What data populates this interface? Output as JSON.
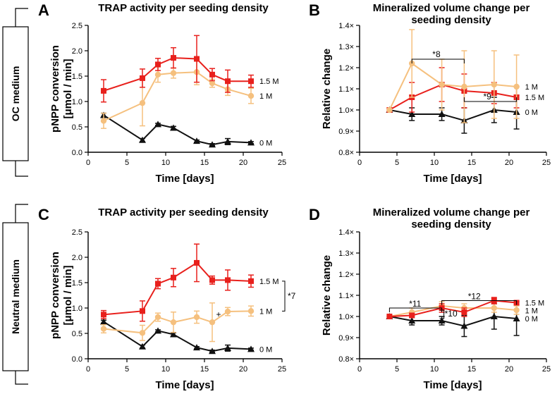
{
  "side_labels": [
    "OC medium",
    "Neutral medium"
  ],
  "chart_data": [
    {
      "panel": "A",
      "type": "line",
      "title": "TRAP activity per seeding density",
      "xlabel": "Time [days]",
      "ylabel": "pNPP conversion [μmol / min]",
      "xlim": [
        0,
        25
      ],
      "ylim": [
        0,
        2.5
      ],
      "xticks": [
        "0",
        "5",
        "10",
        "15",
        "20",
        "25"
      ],
      "yticks": [
        "0.0",
        "0.5",
        "1.0",
        "1.5",
        "2.0",
        "2.5"
      ],
      "series": [
        {
          "name": "1.5 M",
          "color": "#e8201c",
          "marker": "square",
          "x": [
            2,
            7,
            9,
            11,
            14,
            16,
            18,
            21
          ],
          "y": [
            1.21,
            1.46,
            1.73,
            1.86,
            1.84,
            1.53,
            1.4,
            1.4
          ],
          "err": [
            0.22,
            0.18,
            0.12,
            0.2,
            0.46,
            0.12,
            0.22,
            0.12
          ]
        },
        {
          "name": "1 M",
          "color": "#f5c07e",
          "marker": "circle",
          "x": [
            2,
            7,
            9,
            11,
            14,
            16,
            18,
            21
          ],
          "y": [
            0.62,
            0.97,
            1.53,
            1.56,
            1.58,
            1.36,
            1.24,
            1.11
          ],
          "err": [
            0.15,
            0.45,
            0.15,
            0.1,
            0.25,
            0.08,
            0.12,
            0.15
          ]
        },
        {
          "name": "0 M",
          "color": "#111111",
          "marker": "triangle",
          "x": [
            2,
            7,
            9,
            11,
            14,
            16,
            18,
            21
          ],
          "y": [
            0.73,
            0.24,
            0.55,
            0.48,
            0.22,
            0.15,
            0.21,
            0.19
          ],
          "err": [
            0.04,
            0.03,
            0.02,
            0.03,
            0.02,
            0.02,
            0.06,
            0.02
          ]
        }
      ],
      "annotations": []
    },
    {
      "panel": "B",
      "type": "line",
      "title": "Mineralized volume change per seeding density",
      "xlabel": "Time [days]",
      "ylabel": "Relative change",
      "xlim": [
        0,
        25
      ],
      "ylim": [
        0.8,
        1.4
      ],
      "xticks": [
        "0",
        "5",
        "10",
        "15",
        "20",
        "25"
      ],
      "yticks": [
        "0.8×",
        "0.9×",
        "1.0×",
        "1.1×",
        "1.2×",
        "1.3×",
        "1.4×"
      ],
      "series": [
        {
          "name": "1 M",
          "color": "#f5c07e",
          "marker": "circle",
          "x": [
            4,
            7,
            11,
            14,
            18,
            21
          ],
          "y": [
            1.0,
            1.22,
            1.12,
            1.11,
            1.12,
            1.11
          ],
          "err": [
            0,
            0.16,
            0.12,
            0.17,
            0.16,
            0.15
          ]
        },
        {
          "name": "1.5 M",
          "color": "#e8201c",
          "marker": "square",
          "x": [
            4,
            7,
            11,
            14,
            18,
            21
          ],
          "y": [
            1.0,
            1.06,
            1.12,
            1.09,
            1.08,
            1.06
          ],
          "err": [
            0,
            0.07,
            0.08,
            0.08,
            0.05,
            0.05
          ]
        },
        {
          "name": "0 M",
          "color": "#111111",
          "marker": "triangle",
          "x": [
            4,
            7,
            11,
            14,
            18,
            21
          ],
          "y": [
            1.0,
            0.98,
            0.98,
            0.95,
            1.0,
            0.99
          ],
          "err": [
            0,
            0.03,
            0.03,
            0.06,
            0.06,
            0.08
          ]
        }
      ],
      "annotations": [
        "*8",
        "*9"
      ]
    },
    {
      "panel": "C",
      "type": "line",
      "title": "TRAP activity per seeding density",
      "xlabel": "Time [days]",
      "ylabel": "pNPP conversion [μmol / min]",
      "xlim": [
        0,
        25
      ],
      "ylim": [
        0,
        2.5
      ],
      "xticks": [
        "0",
        "5",
        "10",
        "15",
        "20",
        "25"
      ],
      "yticks": [
        "0.0",
        "0.5",
        "1.0",
        "1.5",
        "2.0",
        "2.5"
      ],
      "series": [
        {
          "name": "1.5 M",
          "color": "#e8201c",
          "marker": "square",
          "x": [
            2,
            7,
            9,
            11,
            14,
            16,
            18,
            21
          ],
          "y": [
            0.87,
            0.94,
            1.48,
            1.6,
            1.89,
            1.55,
            1.55,
            1.53
          ],
          "err": [
            0.08,
            0.2,
            0.1,
            0.18,
            0.37,
            0.08,
            0.2,
            0.12
          ]
        },
        {
          "name": "1 M",
          "color": "#f5c07e",
          "marker": "circle",
          "x": [
            2,
            7,
            9,
            11,
            14,
            16,
            18,
            21
          ],
          "y": [
            0.59,
            0.51,
            0.82,
            0.72,
            0.82,
            0.72,
            0.93,
            0.94
          ],
          "err": [
            0.08,
            0.15,
            0.08,
            0.2,
            0.12,
            0.38,
            0.08,
            0.1
          ]
        },
        {
          "name": "0 M",
          "color": "#111111",
          "marker": "triangle",
          "x": [
            2,
            7,
            9,
            11,
            14,
            16,
            18,
            21
          ],
          "y": [
            0.73,
            0.24,
            0.55,
            0.48,
            0.22,
            0.15,
            0.21,
            0.19
          ],
          "err": [
            0.03,
            0.03,
            0.02,
            0.03,
            0.02,
            0.02,
            0.06,
            0.02
          ]
        }
      ],
      "annotations": [
        "*7",
        "+"
      ]
    },
    {
      "panel": "D",
      "type": "line",
      "title": "Mineralized volume change per seeding density",
      "xlabel": "Time [days]",
      "ylabel": "Relative change",
      "xlim": [
        0,
        25
      ],
      "ylim": [
        0.8,
        1.4
      ],
      "xticks": [
        "0",
        "5",
        "10",
        "15",
        "20",
        "25"
      ],
      "yticks": [
        "0.8×",
        "0.9×",
        "1.0×",
        "1.1×",
        "1.2×",
        "1.3×",
        "1.4×"
      ],
      "series": [
        {
          "name": "1.5 M",
          "color": "#e8201c",
          "marker": "square",
          "x": [
            4,
            7,
            11,
            14,
            18,
            21
          ],
          "y": [
            1.0,
            1.005,
            1.04,
            1.02,
            1.075,
            1.065
          ],
          "err": [
            0,
            0.01,
            0.02,
            0.02,
            0.015,
            0.01
          ]
        },
        {
          "name": "1 M",
          "color": "#f5c07e",
          "marker": "circle",
          "x": [
            4,
            7,
            11,
            14,
            18,
            21
          ],
          "y": [
            1.0,
            1.02,
            1.05,
            1.04,
            1.04,
            1.03
          ],
          "err": [
            0,
            0.02,
            0.02,
            0.02,
            0.02,
            0.02
          ]
        },
        {
          "name": "0 M",
          "color": "#111111",
          "marker": "triangle",
          "x": [
            4,
            7,
            11,
            14,
            18,
            21
          ],
          "y": [
            1.0,
            0.98,
            0.98,
            0.955,
            1.0,
            0.99
          ],
          "err": [
            0,
            0.02,
            0.02,
            0.05,
            0.06,
            0.08
          ]
        }
      ],
      "annotations": [
        "*11",
        "*10",
        "*12"
      ]
    }
  ]
}
